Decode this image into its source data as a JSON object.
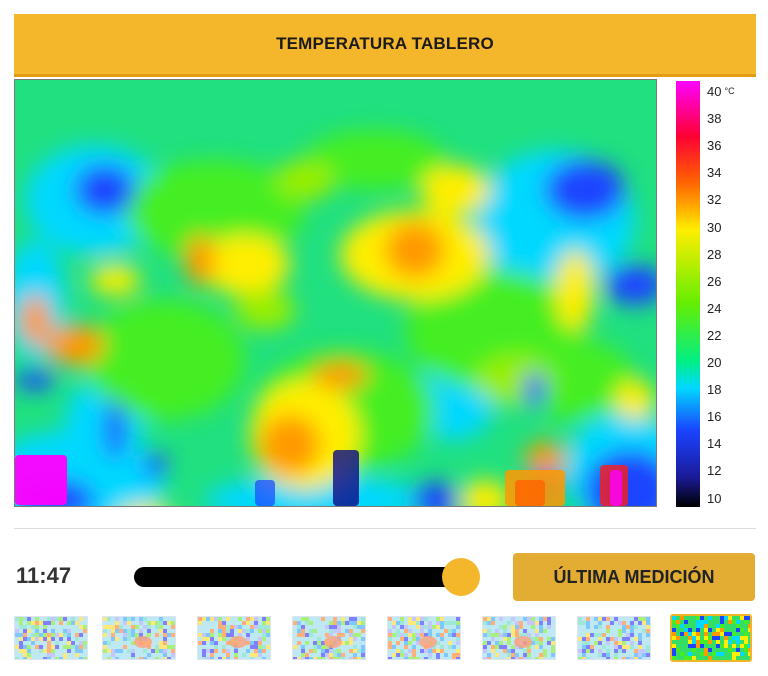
{
  "header": {
    "title": "TEMPERATURA TABLERO"
  },
  "heatmap": {
    "scale": {
      "unit": "°C",
      "labels": [
        "40",
        "38",
        "36",
        "34",
        "32",
        "30",
        "28",
        "26",
        "24",
        "22",
        "20",
        "18",
        "16",
        "14",
        "12",
        "10"
      ]
    },
    "colors": [
      "#000000",
      "#1a1a99",
      "#1a44ff",
      "#00d8ff",
      "#00ee88",
      "#66ee00",
      "#ffee00",
      "#ff6600",
      "#ff0033",
      "#ff00ff"
    ]
  },
  "controls": {
    "time": "11:47",
    "slider_position": 0.99,
    "last_button_label": "ÚLTIMA MEDICIÓN"
  },
  "thumbnails": {
    "count": 8,
    "active_index": 7
  }
}
